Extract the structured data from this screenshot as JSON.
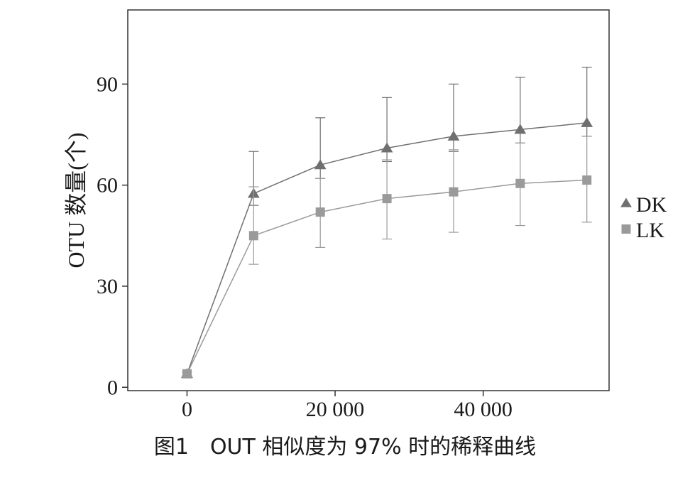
{
  "caption": "图1　OUT 相似度为 97% 时的稀释曲线",
  "chart_data": {
    "type": "line",
    "title": "",
    "xlabel": "",
    "ylabel": "OTU 数量(个)",
    "xlim": [
      -8000,
      57000
    ],
    "ylim": [
      -1,
      112
    ],
    "xticks": [
      0,
      20000,
      40000
    ],
    "xtick_labels": [
      "0",
      "20 000",
      "40 000"
    ],
    "yticks": [
      0,
      30,
      60,
      90
    ],
    "ytick_labels": [
      "0",
      "30",
      "60",
      "90"
    ],
    "grid": false,
    "legend": "right",
    "series": [
      {
        "name": "DK",
        "marker": "triangle",
        "color": "#6f6f6f",
        "x": [
          0,
          9000,
          18000,
          27000,
          36000,
          45000,
          54000
        ],
        "y": [
          4,
          57.5,
          66,
          71,
          74.5,
          76.5,
          78.5
        ],
        "err_low": [
          3.5,
          54,
          62,
          67,
          70,
          72.5,
          74.5
        ],
        "err_high": [
          4.5,
          70,
          80,
          86,
          90,
          92,
          95
        ]
      },
      {
        "name": "LK",
        "marker": "square",
        "color": "#9a9a9a",
        "x": [
          0,
          9000,
          18000,
          27000,
          36000,
          45000,
          54000
        ],
        "y": [
          4,
          45,
          52,
          56,
          58,
          60.5,
          61.5
        ],
        "err_low": [
          3.5,
          36.5,
          41.5,
          44,
          46,
          48,
          49
        ],
        "err_high": [
          4.5,
          59.5,
          62,
          67.5,
          70.5,
          72.5,
          74.5
        ]
      }
    ]
  }
}
